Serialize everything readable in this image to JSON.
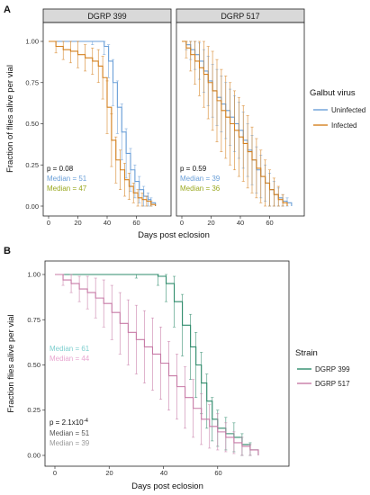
{
  "chart_data": [
    {
      "type": "line",
      "panel_letter": "A",
      "xlabel": "Days post eclosion",
      "ylabel": "Fraction of flies alive per vial",
      "xlim": [
        0,
        80
      ],
      "ylim": [
        0,
        1
      ],
      "x_ticks": [
        0,
        20,
        40,
        60
      ],
      "y_ticks": [
        0.0,
        0.25,
        0.5,
        0.75,
        1.0
      ],
      "x_tick_labels": [
        "0",
        "20",
        "40",
        "60"
      ],
      "y_tick_labels": [
        "0.00",
        "0.25",
        "0.50",
        "0.75",
        "1.00"
      ],
      "grid": false,
      "legend": {
        "title": "Galbut virus",
        "position": "right",
        "entries": [
          {
            "label": "Uninfected",
            "color": "#6a9fd8"
          },
          {
            "label": "Infected",
            "color": "#d4801e"
          }
        ]
      },
      "facets": [
        {
          "title": "DGRP 399",
          "p_value": "p = 0.08",
          "medians": [
            {
              "label": "Median = 51",
              "color": "#6a9fd8"
            },
            {
              "label": "Median = 47",
              "color": "#9aa820"
            }
          ],
          "series": [
            {
              "name": "Uninfected",
              "color": "#6a9fd8",
              "x": [
                0,
                14,
                30,
                38,
                41,
                44,
                47,
                50,
                53,
                56,
                59,
                62,
                65,
                68,
                70,
                73
              ],
              "y": [
                1.0,
                1.0,
                1.0,
                0.97,
                0.88,
                0.75,
                0.6,
                0.45,
                0.32,
                0.22,
                0.15,
                0.1,
                0.06,
                0.04,
                0.02,
                0.0
              ],
              "err": [
                0.0,
                0.0,
                0.02,
                0.05,
                0.1,
                0.14,
                0.16,
                0.17,
                0.15,
                0.13,
                0.1,
                0.08,
                0.06,
                0.04,
                0.03,
                0.0
              ]
            },
            {
              "name": "Infected",
              "color": "#d4801e",
              "x": [
                0,
                5,
                10,
                15,
                20,
                25,
                30,
                34,
                37,
                40,
                43,
                46,
                49,
                52,
                55,
                58,
                61,
                64,
                67,
                70,
                73
              ],
              "y": [
                1.0,
                0.97,
                0.95,
                0.94,
                0.92,
                0.9,
                0.88,
                0.85,
                0.78,
                0.6,
                0.4,
                0.28,
                0.22,
                0.16,
                0.12,
                0.08,
                0.05,
                0.04,
                0.03,
                0.01,
                0.0
              ],
              "err": [
                0.0,
                0.04,
                0.06,
                0.07,
                0.08,
                0.08,
                0.08,
                0.1,
                0.13,
                0.16,
                0.16,
                0.14,
                0.12,
                0.1,
                0.08,
                0.06,
                0.05,
                0.04,
                0.03,
                0.02,
                0.0
              ]
            }
          ]
        },
        {
          "title": "DGRP 517",
          "p_value": "p = 0.59",
          "medians": [
            {
              "label": "Median = 39",
              "color": "#6a9fd8"
            },
            {
              "label": "Median = 36",
              "color": "#9aa820"
            }
          ],
          "series": [
            {
              "name": "Uninfected",
              "color": "#6a9fd8",
              "x": [
                0,
                3,
                6,
                9,
                12,
                15,
                18,
                21,
                24,
                27,
                30,
                33,
                36,
                39,
                42,
                45,
                48,
                51,
                54,
                57,
                60,
                63,
                66,
                69,
                72,
                75
              ],
              "y": [
                1.0,
                0.98,
                0.95,
                0.92,
                0.88,
                0.82,
                0.76,
                0.7,
                0.66,
                0.62,
                0.58,
                0.54,
                0.5,
                0.46,
                0.4,
                0.34,
                0.28,
                0.22,
                0.18,
                0.14,
                0.1,
                0.07,
                0.05,
                0.03,
                0.02,
                0.0
              ],
              "err": [
                0.0,
                0.03,
                0.06,
                0.09,
                0.11,
                0.13,
                0.15,
                0.16,
                0.17,
                0.17,
                0.17,
                0.17,
                0.17,
                0.17,
                0.17,
                0.16,
                0.15,
                0.14,
                0.13,
                0.11,
                0.1,
                0.08,
                0.06,
                0.04,
                0.03,
                0.0
              ]
            },
            {
              "name": "Infected",
              "color": "#d4801e",
              "x": [
                0,
                3,
                6,
                9,
                12,
                15,
                18,
                21,
                24,
                27,
                30,
                33,
                36,
                39,
                42,
                45,
                48,
                51,
                54,
                57,
                60,
                63,
                66,
                69,
                72
              ],
              "y": [
                1.0,
                0.96,
                0.92,
                0.88,
                0.84,
                0.8,
                0.75,
                0.7,
                0.64,
                0.58,
                0.54,
                0.5,
                0.46,
                0.42,
                0.38,
                0.33,
                0.28,
                0.23,
                0.18,
                0.14,
                0.1,
                0.07,
                0.04,
                0.02,
                0.0
              ],
              "err": [
                0.0,
                0.06,
                0.1,
                0.14,
                0.17,
                0.2,
                0.22,
                0.24,
                0.25,
                0.25,
                0.25,
                0.25,
                0.24,
                0.24,
                0.23,
                0.22,
                0.2,
                0.18,
                0.16,
                0.14,
                0.12,
                0.1,
                0.08,
                0.05,
                0.0
              ]
            }
          ]
        }
      ]
    },
    {
      "type": "line",
      "panel_letter": "B",
      "xlabel": "Days post eclosion",
      "ylabel": "Fraction flies alive per vial",
      "xlim": [
        0,
        78
      ],
      "ylim": [
        0,
        1
      ],
      "x_ticks": [
        0,
        20,
        40,
        60
      ],
      "y_ticks": [
        0.0,
        0.25,
        0.5,
        0.75,
        1.0
      ],
      "x_tick_labels": [
        "0",
        "20",
        "40",
        "60"
      ],
      "y_tick_labels": [
        "0.00",
        "0.25",
        "0.50",
        "0.75",
        "1.00"
      ],
      "grid": false,
      "p_value_base": "p = 2.1x10",
      "p_value_exponent": "-4",
      "annotations": [
        {
          "label": "Median = 61",
          "color": "#7ecfcf"
        },
        {
          "label": "Median = 44",
          "color": "#e8a6d0"
        },
        {
          "label": "Median = 51",
          "color": "#555555"
        },
        {
          "label": "Median = 39",
          "color": "#9a9a9a"
        }
      ],
      "legend": {
        "title": "Strain",
        "position": "right",
        "entries": [
          {
            "label": "DGRP 399",
            "color": "#2e8b6b"
          },
          {
            "label": "DGRP 517",
            "color": "#c77aa6"
          }
        ]
      },
      "series": [
        {
          "name": "DGRP 399",
          "color": "#2e8b6b",
          "x": [
            0,
            10,
            20,
            30,
            38,
            41,
            44,
            47,
            50,
            52,
            54,
            56,
            58,
            60,
            63,
            66,
            69,
            72,
            75
          ],
          "y": [
            1.0,
            1.0,
            1.0,
            1.0,
            0.99,
            0.95,
            0.85,
            0.72,
            0.6,
            0.5,
            0.4,
            0.3,
            0.2,
            0.15,
            0.12,
            0.1,
            0.06,
            0.03,
            0.0
          ],
          "err": [
            0.0,
            0.0,
            0.0,
            0.02,
            0.05,
            0.1,
            0.14,
            0.17,
            0.18,
            0.18,
            0.17,
            0.15,
            0.12,
            0.1,
            0.09,
            0.08,
            0.06,
            0.04,
            0.0
          ]
        },
        {
          "name": "DGRP 517",
          "color": "#c77aa6",
          "x": [
            0,
            3,
            6,
            9,
            12,
            15,
            18,
            21,
            24,
            27,
            30,
            33,
            36,
            39,
            42,
            45,
            48,
            51,
            54,
            57,
            60,
            63,
            66,
            69,
            72,
            75
          ],
          "y": [
            1.0,
            0.97,
            0.95,
            0.92,
            0.9,
            0.87,
            0.84,
            0.79,
            0.73,
            0.68,
            0.64,
            0.6,
            0.56,
            0.51,
            0.44,
            0.38,
            0.32,
            0.26,
            0.2,
            0.16,
            0.13,
            0.1,
            0.07,
            0.05,
            0.03,
            0.0
          ],
          "err": [
            0.0,
            0.03,
            0.05,
            0.07,
            0.09,
            0.11,
            0.13,
            0.15,
            0.17,
            0.18,
            0.19,
            0.2,
            0.2,
            0.2,
            0.19,
            0.18,
            0.17,
            0.16,
            0.14,
            0.12,
            0.1,
            0.08,
            0.06,
            0.05,
            0.03,
            0.0
          ]
        }
      ]
    }
  ]
}
